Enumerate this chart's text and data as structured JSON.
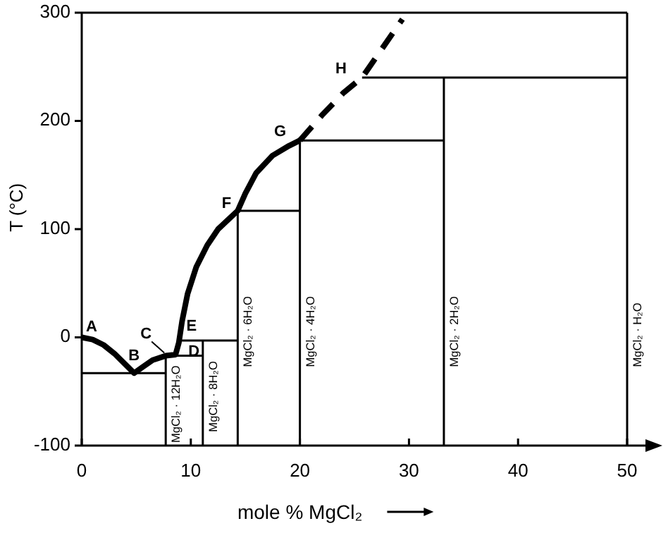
{
  "chart_data": {
    "type": "line",
    "xlabel": "mole % MgCl₂",
    "ylabel": "T (°C)",
    "xlim": [
      0,
      50
    ],
    "ylim": [
      -100,
      300
    ],
    "xticks": [
      0,
      10,
      20,
      30,
      40,
      50
    ],
    "yticks": [
      -100,
      0,
      100,
      200,
      300
    ],
    "grid": false,
    "marker": "none",
    "series": [
      {
        "color": "#000000",
        "line_style": "solid",
        "x": [
          0,
          1,
          2,
          3,
          4,
          4.8,
          5.5,
          6.5,
          7.7,
          8.6,
          8.9,
          9.2,
          9.7,
          10.5,
          11.5,
          12.5,
          14.3,
          15,
          16,
          17.5,
          19,
          20
        ],
        "values": [
          0,
          -2,
          -7,
          -15,
          -25,
          -33,
          -28,
          -21,
          -17,
          -16,
          -5,
          15,
          40,
          65,
          85,
          100,
          117,
          133,
          152,
          168,
          177,
          182
        ]
      },
      {
        "color": "#000000",
        "line_style": "dashed",
        "x": [
          20,
          22,
          24,
          25.7,
          27,
          29.4
        ],
        "values": [
          182,
          205,
          226,
          240,
          259,
          294
        ]
      },
      {
        "color": "#000000",
        "line_style": "solid",
        "x": [
          0,
          7.7
        ],
        "values": [
          -33,
          -33
        ]
      },
      {
        "color": "#000000",
        "line_style": "solid",
        "x": [
          7.7,
          7.7
        ],
        "values": [
          -100,
          -17
        ]
      },
      {
        "color": "#000000",
        "line_style": "solid",
        "x": [
          7.7,
          11.1
        ],
        "values": [
          -17,
          -17
        ]
      },
      {
        "color": "#000000",
        "line_style": "solid",
        "x": [
          11.1,
          11.1
        ],
        "values": [
          -100,
          -3
        ]
      },
      {
        "color": "#000000",
        "line_style": "solid",
        "x": [
          8.9,
          14.3
        ],
        "values": [
          -3,
          -3
        ]
      },
      {
        "color": "#000000",
        "line_style": "solid",
        "x": [
          14.3,
          14.3
        ],
        "values": [
          -100,
          117
        ]
      },
      {
        "color": "#000000",
        "line_style": "solid",
        "x": [
          14.3,
          20
        ],
        "values": [
          117,
          117
        ]
      },
      {
        "color": "#000000",
        "line_style": "solid",
        "x": [
          20,
          20
        ],
        "values": [
          -100,
          182
        ]
      },
      {
        "color": "#000000",
        "line_style": "solid",
        "x": [
          20,
          33.2
        ],
        "values": [
          182,
          182
        ]
      },
      {
        "color": "#000000",
        "line_style": "solid",
        "x": [
          33.2,
          33.2
        ],
        "values": [
          -100,
          240
        ]
      },
      {
        "color": "#000000",
        "line_style": "solid",
        "x": [
          25.7,
          50
        ],
        "values": [
          240,
          240
        ]
      }
    ],
    "ref_lines": [
      {
        "axis": "x",
        "value": 50,
        "color": "#000000"
      }
    ],
    "annotations": [
      {
        "text": "A",
        "x": 0,
        "y": 0
      },
      {
        "text": "B",
        "x": 4.8,
        "y": -33
      },
      {
        "text": "C",
        "x": 7.7,
        "y": -17
      },
      {
        "text": "D",
        "x": 8.6,
        "y": -16
      },
      {
        "text": "E",
        "x": 8.9,
        "y": -3
      },
      {
        "text": "F",
        "x": 14.3,
        "y": 117
      },
      {
        "text": "G",
        "x": 20,
        "y": 182
      },
      {
        "text": "H",
        "x": 25.7,
        "y": 240
      },
      {
        "text": "MgCl₂ · 12H₂O",
        "x": 7.7,
        "y": -100
      },
      {
        "text": "MgCl₂ · 8H₂O",
        "x": 11.1,
        "y": -90
      },
      {
        "text": "MgCl₂ · 6H₂O",
        "x": 14.3,
        "y": -30
      },
      {
        "text": "MgCl₂ · 4H₂O",
        "x": 20,
        "y": -30
      },
      {
        "text": "MgCl₂ · 2H₂O",
        "x": 33.2,
        "y": -30
      },
      {
        "text": "MgCl₂ · H₂O",
        "x": 50,
        "y": -30
      }
    ]
  }
}
